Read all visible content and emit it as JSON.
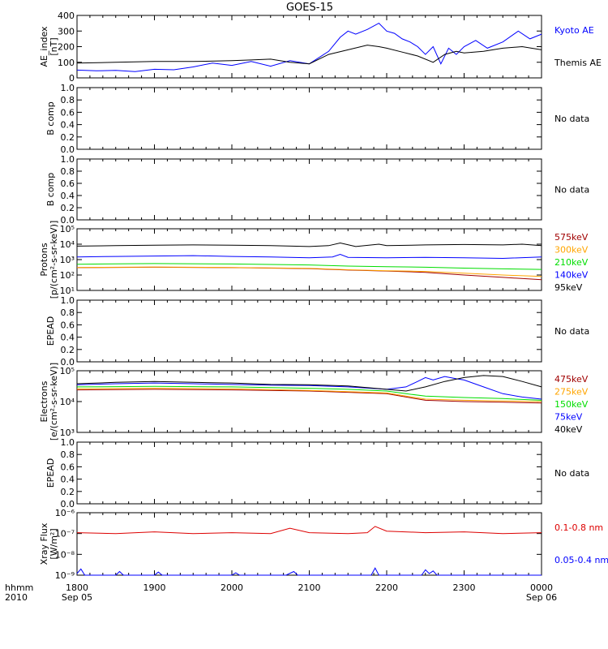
{
  "title": "GOES-15",
  "time_axis": {
    "hour_labels": [
      "1800",
      "1900",
      "2000",
      "2100",
      "2200",
      "2300",
      "0000"
    ],
    "date_left": "Sep 05",
    "date_right": "Sep 06",
    "row_label_top": "hhmm",
    "row_label_bottom": "2010"
  },
  "chart_data": [
    {
      "type": "line",
      "panel": "ae",
      "ylabel_lines": [
        "AE_index",
        "[nT]"
      ],
      "y_ticks": [
        "0",
        "100",
        "200",
        "300",
        "400"
      ],
      "ylim": [
        0,
        400
      ],
      "x_range_hours": [
        18,
        24
      ],
      "series": [
        {
          "name": "Kyoto AE",
          "color": "#0000ff",
          "x": [
            18.0,
            18.25,
            18.5,
            18.75,
            19.0,
            19.25,
            19.5,
            19.75,
            20.0,
            20.25,
            20.5,
            20.75,
            21.0,
            21.25,
            21.4,
            21.5,
            21.6,
            21.75,
            21.9,
            22.0,
            22.1,
            22.2,
            22.3,
            22.4,
            22.5,
            22.6,
            22.7,
            22.8,
            22.9,
            23.0,
            23.15,
            23.3,
            23.5,
            23.7,
            23.85,
            24.0
          ],
          "values": [
            50,
            45,
            48,
            40,
            55,
            52,
            70,
            95,
            80,
            105,
            75,
            110,
            90,
            170,
            260,
            300,
            280,
            310,
            350,
            300,
            285,
            250,
            230,
            200,
            150,
            200,
            90,
            190,
            150,
            200,
            240,
            190,
            230,
            300,
            250,
            280
          ]
        },
        {
          "name": "Themis AE",
          "color": "#000000",
          "x": [
            18.0,
            18.5,
            19.0,
            19.5,
            20.0,
            20.25,
            20.5,
            20.75,
            21.0,
            21.25,
            21.5,
            21.75,
            21.9,
            22.0,
            22.2,
            22.4,
            22.6,
            22.75,
            22.9,
            23.0,
            23.25,
            23.5,
            23.75,
            24.0
          ],
          "values": [
            95,
            100,
            105,
            105,
            110,
            115,
            120,
            100,
            90,
            150,
            180,
            210,
            200,
            190,
            165,
            140,
            100,
            150,
            170,
            160,
            170,
            190,
            200,
            180
          ]
        }
      ]
    },
    {
      "type": "line",
      "panel": "bcomp1",
      "ylabel_lines": [
        "B comp"
      ],
      "y_ticks": [
        "0.0",
        "0.2",
        "0.4",
        "0.6",
        "0.8",
        "1.0"
      ],
      "ylim": [
        0,
        1
      ],
      "no_data_text": "No data",
      "series": []
    },
    {
      "type": "line",
      "panel": "bcomp2",
      "ylabel_lines": [
        "B comp"
      ],
      "y_ticks": [
        "0.0",
        "0.2",
        "0.4",
        "0.6",
        "0.8",
        "1.0"
      ],
      "ylim": [
        0,
        1
      ],
      "no_data_text": "No data",
      "series": []
    },
    {
      "type": "line",
      "panel": "protons",
      "ylabel_lines": [
        "Protons",
        "[p/(cm²-s-sr-keV)]"
      ],
      "y_ticks": [
        "10¹",
        "10²",
        "10³",
        "10⁴",
        "10⁵"
      ],
      "y_scale": "log",
      "ylim_log10": [
        1,
        5
      ],
      "x_range_hours": [
        18,
        24
      ],
      "series": [
        {
          "name": "575keV",
          "color": "#a00000",
          "x": [
            18.0,
            19.0,
            20.0,
            21.0,
            21.5,
            22.0,
            22.5,
            23.0,
            23.5,
            24.0
          ],
          "values": [
            300,
            320,
            300,
            260,
            210,
            180,
            150,
            100,
            70,
            50
          ]
        },
        {
          "name": "300keV",
          "color": "#ffa500",
          "x": [
            18.0,
            19.0,
            20.0,
            21.0,
            21.5,
            22.0,
            22.5,
            23.0,
            23.5,
            24.0
          ],
          "values": [
            310,
            330,
            310,
            270,
            220,
            190,
            170,
            130,
            100,
            80
          ]
        },
        {
          "name": "210keV",
          "color": "#00dd00",
          "x": [
            18.0,
            19.0,
            20.0,
            21.0,
            21.5,
            22.0,
            22.5,
            23.0,
            23.5,
            24.0
          ],
          "values": [
            500,
            550,
            520,
            450,
            380,
            350,
            320,
            280,
            250,
            230
          ]
        },
        {
          "name": "140keV",
          "color": "#0000ff",
          "x": [
            18.0,
            18.5,
            19.0,
            19.5,
            20.0,
            20.5,
            21.0,
            21.3,
            21.4,
            21.5,
            22.0,
            22.5,
            23.0,
            23.5,
            24.0
          ],
          "values": [
            1500,
            1600,
            1700,
            1800,
            1600,
            1500,
            1300,
            1500,
            2200,
            1400,
            1300,
            1400,
            1300,
            1200,
            1500
          ]
        },
        {
          "name": "95keV",
          "color": "#000000",
          "x": [
            18.0,
            18.5,
            19.0,
            19.5,
            20.0,
            20.5,
            21.0,
            21.25,
            21.4,
            21.6,
            21.9,
            22.0,
            22.5,
            23.0,
            23.5,
            23.75,
            24.0
          ],
          "values": [
            7500,
            8000,
            8500,
            9000,
            8500,
            8000,
            7000,
            8000,
            12000,
            7000,
            10000,
            8000,
            9000,
            9500,
            9000,
            10000,
            8000
          ]
        }
      ]
    },
    {
      "type": "line",
      "panel": "epead1",
      "ylabel_lines": [
        "EPEAD"
      ],
      "y_ticks": [
        "0.0",
        "0.2",
        "0.4",
        "0.6",
        "0.8",
        "1.0"
      ],
      "ylim": [
        0,
        1
      ],
      "no_data_text": "No data",
      "series": []
    },
    {
      "type": "line",
      "panel": "electrons",
      "ylabel_lines": [
        "Electrons",
        "[e/(cm²-s-sr-keV)]"
      ],
      "y_ticks": [
        "10³",
        "10⁴",
        "10⁵"
      ],
      "y_scale": "log",
      "ylim_log10": [
        3,
        5
      ],
      "x_range_hours": [
        18,
        24
      ],
      "series": [
        {
          "name": "475keV",
          "color": "#a00000",
          "x": [
            18.0,
            19.0,
            20.0,
            21.0,
            21.5,
            22.0,
            22.25,
            22.5,
            23.0,
            23.5,
            24.0
          ],
          "values": [
            24000,
            25000,
            24000,
            22000,
            20000,
            18000,
            14000,
            11000,
            10000,
            9500,
            9000
          ]
        },
        {
          "name": "275keV",
          "color": "#ffa500",
          "x": [
            18.0,
            19.0,
            20.0,
            21.0,
            21.5,
            22.0,
            22.25,
            22.5,
            23.0,
            23.5,
            24.0
          ],
          "values": [
            26000,
            27000,
            26000,
            23000,
            21000,
            19000,
            15000,
            12000,
            11000,
            10500,
            10000
          ]
        },
        {
          "name": "150keV",
          "color": "#00dd00",
          "x": [
            18.0,
            19.0,
            20.0,
            21.0,
            21.5,
            22.0,
            22.25,
            22.5,
            23.0,
            23.5,
            24.0
          ],
          "values": [
            30000,
            31000,
            30000,
            27000,
            25000,
            22000,
            18000,
            15000,
            13500,
            12500,
            11000
          ]
        },
        {
          "name": "75keV",
          "color": "#0000ff",
          "x": [
            18.0,
            18.5,
            19.0,
            19.5,
            20.0,
            20.5,
            21.0,
            21.5,
            22.0,
            22.25,
            22.4,
            22.5,
            22.6,
            22.75,
            22.9,
            23.0,
            23.25,
            23.5,
            23.75,
            24.0
          ],
          "values": [
            35000,
            38000,
            40000,
            38000,
            36000,
            34000,
            33000,
            30000,
            25000,
            30000,
            45000,
            60000,
            50000,
            65000,
            55000,
            50000,
            30000,
            18000,
            14000,
            12000
          ]
        },
        {
          "name": "40keV",
          "color": "#000000",
          "x": [
            18.0,
            18.5,
            19.0,
            19.5,
            20.0,
            20.5,
            21.0,
            21.5,
            22.0,
            22.25,
            22.5,
            22.75,
            23.0,
            23.25,
            23.5,
            23.75,
            24.0
          ],
          "values": [
            38000,
            42000,
            45000,
            42000,
            40000,
            36000,
            35000,
            32000,
            25000,
            22000,
            30000,
            45000,
            60000,
            70000,
            65000,
            45000,
            30000
          ]
        }
      ]
    },
    {
      "type": "line",
      "panel": "epead2",
      "ylabel_lines": [
        "EPEAD"
      ],
      "y_ticks": [
        "0.0",
        "0.2",
        "0.4",
        "0.6",
        "0.8",
        "1.0"
      ],
      "ylim": [
        0,
        1
      ],
      "no_data_text": "No data",
      "series": []
    },
    {
      "type": "line",
      "panel": "xray",
      "ylabel_lines": [
        "Xray Flux",
        "[W/m²]"
      ],
      "y_ticks": [
        "10⁻⁹",
        "10⁻⁸",
        "10⁻⁷",
        "10⁻⁶"
      ],
      "y_scale": "log",
      "ylim_log10": [
        -9,
        -6
      ],
      "x_range_hours": [
        18,
        24
      ],
      "series": [
        {
          "name": "0.1-0.8 nm",
          "color": "#dd0000",
          "x": [
            18.0,
            18.5,
            19.0,
            19.5,
            20.0,
            20.5,
            20.75,
            21.0,
            21.5,
            21.75,
            21.85,
            22.0,
            22.5,
            23.0,
            23.5,
            24.0
          ],
          "values": [
            1.1e-07,
            1e-07,
            1.2e-07,
            1e-07,
            1.1e-07,
            1e-07,
            1.8e-07,
            1.1e-07,
            1e-07,
            1.1e-07,
            2.2e-07,
            1.3e-07,
            1.1e-07,
            1.2e-07,
            1e-07,
            1.1e-07
          ]
        },
        {
          "name": "0.05-0.4 nm",
          "color": "#0000ff",
          "x": [
            18.0,
            18.05,
            18.1,
            18.15,
            18.5,
            18.55,
            18.6,
            19.0,
            19.05,
            19.1,
            20.0,
            20.05,
            20.1,
            20.7,
            20.8,
            20.85,
            21.0,
            21.5,
            21.8,
            21.85,
            21.9,
            22.0,
            22.45,
            22.5,
            22.55,
            22.6,
            22.65,
            23.0,
            23.5,
            24.0
          ],
          "values": [
            1.2e-09,
            2e-09,
            1e-09,
            1e-09,
            1e-09,
            1.5e-09,
            1e-09,
            1e-09,
            1.4e-09,
            1e-09,
            1e-09,
            1.3e-09,
            1e-09,
            1e-09,
            1.5e-09,
            1e-09,
            1e-09,
            1e-09,
            1e-09,
            2.2e-09,
            1e-09,
            1e-09,
            1e-09,
            1.8e-09,
            1.2e-09,
            1.6e-09,
            1e-09,
            1e-09,
            1e-09,
            1e-09
          ]
        }
      ]
    }
  ]
}
